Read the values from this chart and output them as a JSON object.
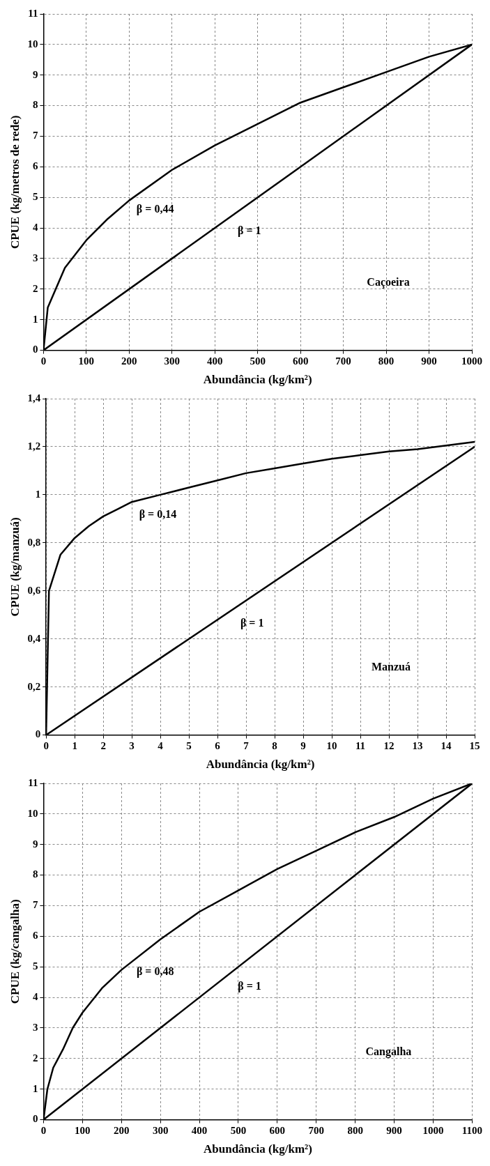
{
  "chart_data": [
    {
      "type": "line",
      "xlabel": "Abundância (kg/km²)",
      "ylabel": "CPUE (kg/metros de rede)",
      "xlim": [
        0,
        1000
      ],
      "xticks": [
        0,
        100,
        200,
        300,
        400,
        500,
        600,
        700,
        800,
        900,
        1000
      ],
      "ylim": [
        0,
        11
      ],
      "yticks": [
        0,
        1,
        2,
        3,
        4,
        5,
        6,
        7,
        8,
        9,
        10,
        11
      ],
      "grid": true,
      "legend": false,
      "marker": "none",
      "line_style": "solid",
      "series": [
        {
          "name": "β = 0,44",
          "color": "#000000",
          "x": [
            0,
            10,
            50,
            100,
            150,
            200,
            300,
            400,
            500,
            600,
            700,
            800,
            900,
            1000
          ],
          "values": [
            0,
            1.4,
            2.7,
            3.6,
            4.3,
            4.9,
            5.9,
            6.7,
            7.4,
            8.1,
            8.6,
            9.1,
            9.6,
            10
          ]
        },
        {
          "name": "β = 1",
          "color": "#000000",
          "x": [
            0,
            1000
          ],
          "values": [
            0,
            10
          ]
        }
      ],
      "annotations": [
        "Caçoeira"
      ]
    },
    {
      "type": "line",
      "xlabel": "Abundância (kg/km²)",
      "ylabel": "CPUE (kg/manzuá)",
      "xlim": [
        0,
        15
      ],
      "xticks": [
        0,
        1,
        2,
        3,
        4,
        5,
        6,
        7,
        8,
        9,
        10,
        11,
        12,
        13,
        14,
        15
      ],
      "ylim": [
        0,
        1.4
      ],
      "yticks": [
        0,
        {
          "value": 0.2,
          "label": "0,2"
        },
        {
          "value": 0.4,
          "label": "0,4"
        },
        {
          "value": 0.6,
          "label": "0,6"
        },
        {
          "value": 0.8,
          "label": "0,8"
        },
        1,
        {
          "value": 1.2,
          "label": "1,2"
        },
        {
          "value": 1.4,
          "label": "1,4"
        }
      ],
      "grid": true,
      "legend": false,
      "marker": "none",
      "line_style": "solid",
      "series": [
        {
          "name": "β = 0,14",
          "color": "#000000",
          "x": [
            0,
            0.1,
            0.5,
            1,
            1.5,
            2,
            2.5,
            3,
            4,
            5,
            6,
            7,
            8,
            9,
            10,
            11,
            12,
            13,
            14,
            15
          ],
          "values": [
            0,
            0.6,
            0.75,
            0.82,
            0.87,
            0.91,
            0.94,
            0.97,
            1.0,
            1.03,
            1.06,
            1.09,
            1.11,
            1.13,
            1.15,
            1.165,
            1.18,
            1.19,
            1.205,
            1.22
          ]
        },
        {
          "name": "β = 1",
          "color": "#000000",
          "x": [
            0,
            15
          ],
          "values": [
            0,
            1.2
          ]
        }
      ],
      "annotations": [
        "Manzuá"
      ]
    },
    {
      "type": "line",
      "xlabel": "Abundância (kg/km²)",
      "ylabel": "CPUE (kg/cangalha)",
      "xlim": [
        0,
        1100
      ],
      "xticks": [
        0,
        100,
        200,
        300,
        400,
        500,
        600,
        700,
        800,
        900,
        1000,
        1100
      ],
      "ylim": [
        0,
        11
      ],
      "yticks": [
        0,
        1,
        2,
        3,
        4,
        5,
        6,
        7,
        8,
        9,
        10,
        11
      ],
      "grid": true,
      "legend": false,
      "marker": "none",
      "line_style": "solid",
      "series": [
        {
          "name": "β = 0,48",
          "color": "#000000",
          "x": [
            0,
            10,
            25,
            50,
            75,
            100,
            150,
            200,
            300,
            400,
            500,
            600,
            700,
            800,
            900,
            1000,
            1100
          ],
          "values": [
            0,
            1.0,
            1.7,
            2.3,
            3.0,
            3.5,
            4.3,
            4.9,
            5.9,
            6.8,
            7.5,
            8.2,
            8.8,
            9.4,
            9.9,
            10.5,
            11
          ]
        },
        {
          "name": "β = 1",
          "color": "#000000",
          "x": [
            0,
            1100
          ],
          "values": [
            0,
            11
          ]
        }
      ],
      "annotations": [
        "Cangalha"
      ]
    }
  ]
}
